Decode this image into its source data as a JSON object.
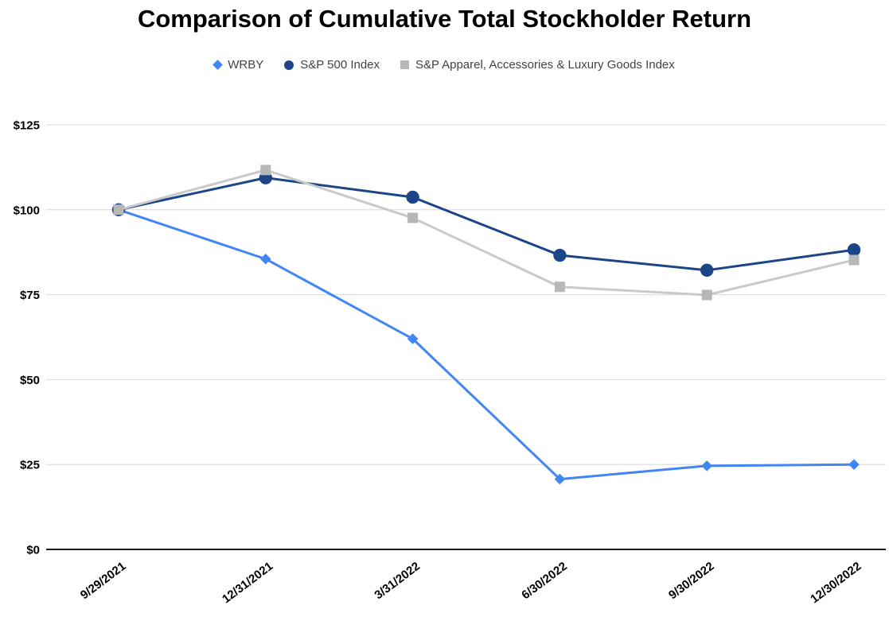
{
  "chart_data": {
    "type": "line",
    "title": "Comparison of Cumulative Total Stockholder Return",
    "x_categories": [
      "9/29/2021",
      "12/31/2021",
      "3/31/2022",
      "6/30/2022",
      "9/30/2022",
      "12/30/2022"
    ],
    "y_tick_values": [
      0,
      25,
      50,
      75,
      100,
      125
    ],
    "y_tick_labels": [
      "$0",
      "$25",
      "$50",
      "$75",
      "$100",
      "$125"
    ],
    "ylim": [
      0,
      125
    ],
    "grid": true,
    "legend_position": "top-center",
    "series": [
      {
        "name": "WRBY",
        "marker": "diamond",
        "color": "#4285f4",
        "values": [
          100,
          85.5,
          62,
          20.7,
          24.6,
          25
        ]
      },
      {
        "name": "S&P 500 Index",
        "marker": "circle",
        "color": "#1c4587",
        "values": [
          100,
          109.4,
          103.7,
          86.6,
          82.2,
          88.2
        ]
      },
      {
        "name": "S&P Apparel, Accessories & Luxury Goods Index",
        "marker": "square",
        "color": "#b7b7b7",
        "line_color": "#c9c9c9",
        "values": [
          100,
          111.7,
          97.6,
          77.3,
          74.9,
          85.2
        ]
      }
    ],
    "colors": {
      "grid": "#d9d9d9",
      "axis": "#1a1a1a",
      "tick_label": "#000000",
      "legend_text": "#424242",
      "background": "#ffffff"
    }
  }
}
